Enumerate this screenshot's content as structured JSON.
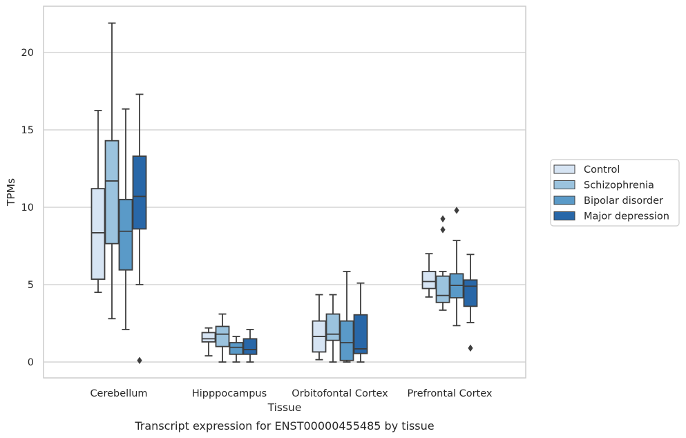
{
  "chart_data": {
    "type": "box",
    "caption": "Transcript expression for ENST00000455485 by tissue",
    "xlabel": "Tissue",
    "ylabel": "TPMs",
    "ylim": [
      -1,
      23
    ],
    "yticks": [
      0,
      5,
      10,
      15,
      20
    ],
    "grid": "horizontal",
    "legend_position": "right",
    "categories": [
      "Cerebellum",
      "Hipppocampus",
      "Orbitofontal Cortex",
      "Prefrontal Cortex"
    ],
    "series": [
      {
        "name": "Control",
        "color": "#d6e4f3",
        "boxes": [
          {
            "whislo": 4.5,
            "q1": 5.35,
            "med": 8.35,
            "q3": 11.2,
            "whishi": 16.25,
            "fliers": []
          },
          {
            "whislo": 0.4,
            "q1": 1.3,
            "med": 1.5,
            "q3": 1.9,
            "whishi": 2.2,
            "fliers": []
          },
          {
            "whislo": 0.15,
            "q1": 0.65,
            "med": 1.65,
            "q3": 2.65,
            "whishi": 4.35,
            "fliers": []
          },
          {
            "whislo": 4.2,
            "q1": 4.75,
            "med": 5.2,
            "q3": 5.85,
            "whishi": 7.0,
            "fliers": []
          }
        ]
      },
      {
        "name": "Schizophrenia",
        "color": "#9bc3de",
        "boxes": [
          {
            "whislo": 2.8,
            "q1": 7.65,
            "med": 11.7,
            "q3": 14.3,
            "whishi": 21.9,
            "fliers": []
          },
          {
            "whislo": 0.0,
            "q1": 1.0,
            "med": 1.8,
            "q3": 2.3,
            "whishi": 3.1,
            "fliers": []
          },
          {
            "whislo": 0.0,
            "q1": 1.4,
            "med": 1.8,
            "q3": 3.1,
            "whishi": 4.35,
            "fliers": []
          },
          {
            "whislo": 3.35,
            "q1": 3.85,
            "med": 4.3,
            "q3": 5.55,
            "whishi": 5.85,
            "fliers": [
              8.55,
              9.25
            ]
          }
        ]
      },
      {
        "name": "Bipolar disorder",
        "color": "#5a9ac8",
        "boxes": [
          {
            "whislo": 2.1,
            "q1": 5.95,
            "med": 8.45,
            "q3": 10.5,
            "whishi": 16.35,
            "fliers": []
          },
          {
            "whislo": 0.0,
            "q1": 0.5,
            "med": 0.95,
            "q3": 1.25,
            "whishi": 1.65,
            "fliers": []
          },
          {
            "whislo": 0.0,
            "q1": 0.1,
            "med": 1.25,
            "q3": 2.65,
            "whishi": 5.85,
            "fliers": []
          },
          {
            "whislo": 2.35,
            "q1": 4.15,
            "med": 4.95,
            "q3": 5.7,
            "whishi": 7.85,
            "fliers": [
              9.8
            ]
          }
        ]
      },
      {
        "name": "Major depression",
        "color": "#2867a8",
        "boxes": [
          {
            "whislo": 5.0,
            "q1": 8.6,
            "med": 10.7,
            "q3": 13.3,
            "whishi": 17.3,
            "fliers": [
              0.1
            ]
          },
          {
            "whislo": 0.0,
            "q1": 0.5,
            "med": 0.8,
            "q3": 1.5,
            "whishi": 2.1,
            "fliers": []
          },
          {
            "whislo": 0.0,
            "q1": 0.55,
            "med": 0.85,
            "q3": 3.05,
            "whishi": 5.1,
            "fliers": []
          },
          {
            "whislo": 2.55,
            "q1": 3.6,
            "med": 4.9,
            "q3": 5.3,
            "whishi": 6.95,
            "fliers": [
              0.9
            ]
          }
        ]
      }
    ]
  },
  "colors": {
    "line": "#3d3d3d",
    "grid": "#cccccc",
    "frame": "#cccccc"
  }
}
